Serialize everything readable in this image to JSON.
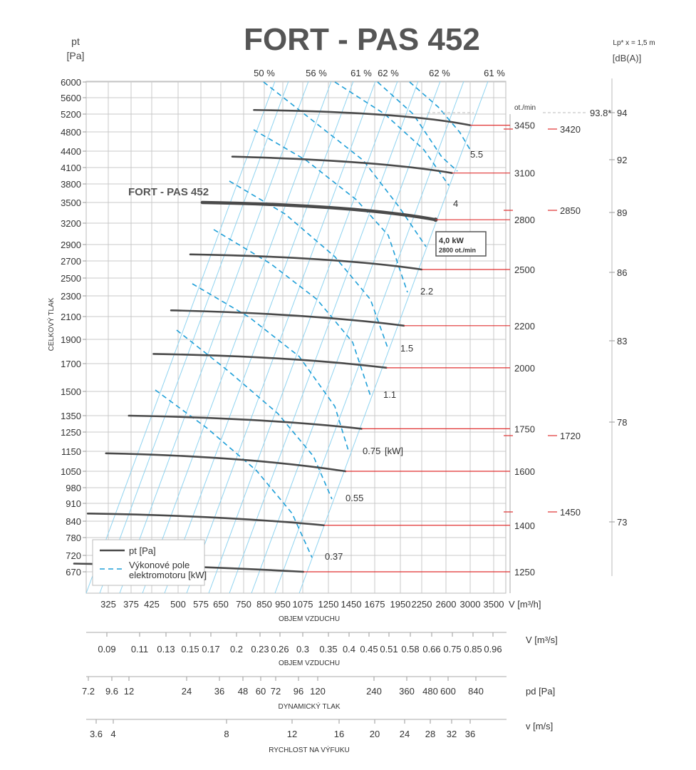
{
  "chart_data": {
    "type": "line",
    "title": "FORT - PAS 452",
    "y_axis": {
      "label_top": "pt",
      "unit": "[Pa]",
      "label_side": "CELKOVÝ TLAK",
      "ticks": [
        6000,
        5600,
        5200,
        4800,
        4400,
        4100,
        3800,
        3500,
        3200,
        2900,
        2700,
        2500,
        2300,
        2100,
        1900,
        1700,
        1500,
        1350,
        1250,
        1150,
        1050,
        980,
        910,
        840,
        780,
        720,
        670
      ]
    },
    "x_axis": {
      "label": "V [m³/h]",
      "caption": "OBJEM VZDUCHU",
      "ticks": [
        325,
        375,
        425,
        500,
        575,
        650,
        750,
        850,
        950,
        1075,
        1250,
        1450,
        1675,
        1950,
        2250,
        2600,
        3000,
        3500
      ]
    },
    "scale_m3s": {
      "label": "V  [m³/s]",
      "caption": "OBJEM VZDUCHU",
      "ticks": [
        "0.09",
        "0.11",
        "0.13",
        "0.15",
        "0.17",
        "0.2",
        "0.23",
        "0.26",
        "0.3",
        "0.35",
        "0.4",
        "0.45",
        "0.51",
        "0.58",
        "0.66",
        "0.75",
        "0.85",
        "0.96"
      ]
    },
    "scale_pd": {
      "label": "pd  [Pa]",
      "caption": "DYNAMICKÝ TLAK",
      "ticks": [
        "7.2",
        "9.6",
        "12",
        "24",
        "36",
        "48",
        "60",
        "72",
        "96",
        "120",
        "240",
        "360",
        "480",
        "600",
        "840"
      ]
    },
    "scale_v": {
      "label": "v  [m/s]",
      "caption": "RYCHLOST NA VÝFUKU",
      "ticks": [
        "3.6",
        "4",
        "8",
        "12",
        "16",
        "20",
        "24",
        "28",
        "32",
        "36"
      ]
    },
    "efficiency_labels": [
      "50 %",
      "56 %",
      "61 %",
      "62 %",
      "62 %",
      "61 %"
    ],
    "rpm_header": "ot./min",
    "rpm_labels": [
      "3450",
      "3100",
      "2800",
      "2500",
      "2200",
      "2000",
      "1750",
      "1600",
      "1400",
      "1250"
    ],
    "rpm_alt_labels": [
      "3420",
      "2850",
      "1720",
      "1450"
    ],
    "power_labels": [
      "5.5",
      "4",
      "2.2",
      "1.5",
      "1.1",
      "0.75",
      "[kW]",
      "0.55",
      "0.37"
    ],
    "sound": {
      "header_line1": "Lp* x = 1,5 m",
      "header_line2": "[dB(A)]",
      "max_label": "93.8*",
      "ticks": [
        "94",
        "92",
        "89",
        "86",
        "83",
        "78",
        "73"
      ]
    },
    "series": [
      {
        "rpm": 3450,
        "points": [
          [
            800,
            5300
          ],
          [
            2000,
            5250
          ],
          [
            3000,
            4950
          ]
        ]
      },
      {
        "rpm": 3100,
        "points": [
          [
            700,
            4300
          ],
          [
            1700,
            4230
          ],
          [
            2700,
            4000
          ]
        ]
      },
      {
        "rpm": 2800,
        "main": true,
        "points": [
          [
            580,
            3500
          ],
          [
            1500,
            3460
          ],
          [
            2450,
            3250
          ]
        ]
      },
      {
        "rpm": 2500,
        "points": [
          [
            540,
            2780
          ],
          [
            1300,
            2750
          ],
          [
            2250,
            2600
          ]
        ]
      },
      {
        "rpm": 2200,
        "points": [
          [
            480,
            2160
          ],
          [
            1100,
            2130
          ],
          [
            2000,
            2020
          ]
        ]
      },
      {
        "rpm": 2000,
        "points": [
          [
            430,
            1780
          ],
          [
            1000,
            1760
          ],
          [
            1800,
            1670
          ]
        ]
      },
      {
        "rpm": 1750,
        "points": [
          [
            370,
            1350
          ],
          [
            850,
            1335
          ],
          [
            1550,
            1270
          ]
        ]
      },
      {
        "rpm": 1600,
        "points": [
          [
            320,
            1140
          ],
          [
            760,
            1125
          ],
          [
            1400,
            1050
          ]
        ]
      },
      {
        "rpm": 1400,
        "points": [
          [
            280,
            870
          ],
          [
            650,
            862
          ],
          [
            1220,
            825
          ]
        ]
      },
      {
        "rpm": 1250,
        "points": [
          [
            250,
            695
          ],
          [
            560,
            688
          ],
          [
            1080,
            650
          ]
        ]
      }
    ],
    "annotation_curve": "FORT - PAS 452",
    "annotation_box": {
      "line1": "4,0 kW",
      "line2": "2800 ot./min"
    },
    "legend": {
      "items": [
        {
          "label": "pt [Pa]"
        },
        {
          "label": "Výkonové pole elektromotoru [kW]"
        }
      ]
    }
  },
  "colors": {
    "curve": "#4a4a4a",
    "efficiency": "#1e9fd8",
    "system_lines": "#8fd3f0",
    "rpm_marker": "#e03030",
    "grid": "#c8c8c8"
  }
}
